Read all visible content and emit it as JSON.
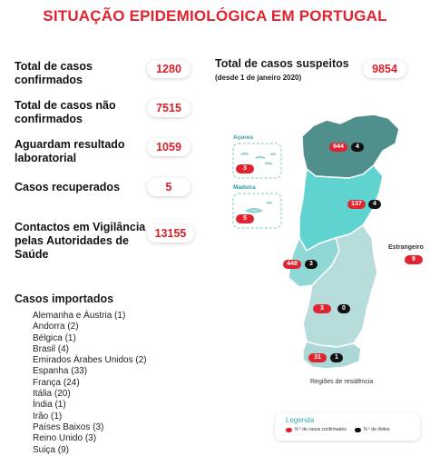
{
  "title": "SITUAÇÃO EPIDEMIOLÓGICA EM PORTUGAL",
  "stats": [
    {
      "label": "Total de casos confirmados",
      "value": "1280"
    },
    {
      "label": "Total de casos não confirmados",
      "value": "7515"
    },
    {
      "label": "Aguardam resultado laboratorial",
      "value": "1059"
    },
    {
      "label": "Casos recuperados",
      "value": "5"
    },
    {
      "label": "Contactos em Vigilância pelas Autoridades de Saúde",
      "value": "13155"
    }
  ],
  "suspects": {
    "label": "Total de casos suspeitos",
    "note": "(desde 1 de janeiro 2020)",
    "value": "9854"
  },
  "imported": {
    "title": "Casos importados",
    "items": [
      "Alemanha e Áustria (1)",
      "Andorra (2)",
      "Bélgica (1)",
      "Brasil (4)",
      "Emirados Árabes Unidos (2)",
      "Espanha (33)",
      "França (24)",
      "Itália (20)",
      "Índia (1)",
      "Irão (1)",
      "Países Baixos (3)",
      "Reino Unido (3)",
      "Suiça (9)"
    ]
  },
  "map": {
    "azores_label": "Açores",
    "madeira_label": "Madeira",
    "foreign_label": "Estrangeiro",
    "caption": "Regiões de residência",
    "regions": [
      {
        "name": "Norte",
        "cases": "644",
        "deaths": "4",
        "color": "#4f8f8c"
      },
      {
        "name": "Centro",
        "cases": "137",
        "deaths": "4",
        "color": "#5fd3d0"
      },
      {
        "name": "Lisboa e Vale do Tejo",
        "cases": "448",
        "deaths": "3",
        "color": "#8fd8d6"
      },
      {
        "name": "Alentejo",
        "cases": "3",
        "deaths": "0",
        "color": "#b6dcdb"
      },
      {
        "name": "Algarve",
        "cases": "31",
        "deaths": "1",
        "color": "#a9d8d6"
      }
    ],
    "azores": {
      "cases": "3"
    },
    "madeira": {
      "cases": "5"
    },
    "foreign": {
      "cases": "9"
    }
  },
  "legend": {
    "title": "Legenda",
    "confirmed": "N.º de casos confirmados",
    "deaths": "N.º de óbitos",
    "confirmed_color": "#e0242f",
    "deaths_color": "#111111"
  }
}
